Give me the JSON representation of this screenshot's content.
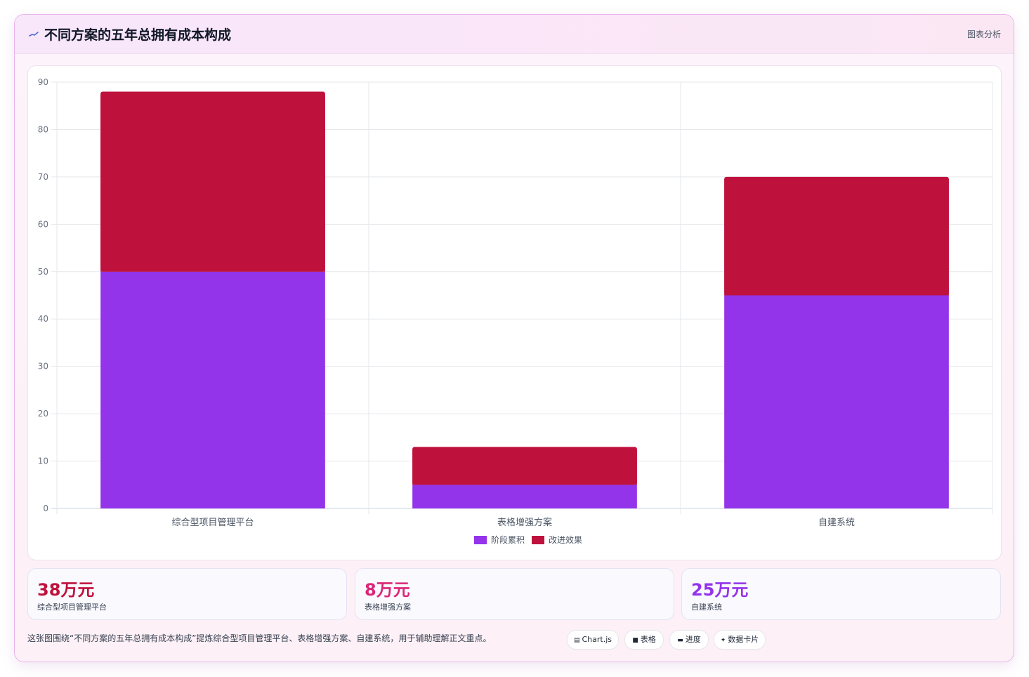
{
  "header": {
    "title": "不同方案的五年总拥有成本构成",
    "tag": "图表分析",
    "icon": "sparkline-icon"
  },
  "colors": {
    "series_purple": "#9333ea",
    "series_crimson": "#be123c",
    "stat_crimson": "#be123c",
    "stat_pink": "#db2777",
    "stat_purple": "#9333ea"
  },
  "chart_data": {
    "type": "bar",
    "stacked": true,
    "categories": [
      "综合型项目管理平台",
      "表格增强方案",
      "自建系统"
    ],
    "series": [
      {
        "name": "阶段累积",
        "color": "#9333ea",
        "values": [
          50,
          5,
          45
        ]
      },
      {
        "name": "改进效果",
        "color": "#be123c",
        "values": [
          38,
          8,
          25
        ]
      }
    ],
    "ylim": [
      0,
      90
    ],
    "yticks": [
      0,
      10,
      20,
      30,
      40,
      50,
      60,
      70,
      80,
      90
    ],
    "grid": true,
    "legend": "bottom-center"
  },
  "stats": [
    {
      "value": "38万元",
      "label": "综合型项目管理平台",
      "color": "#be123c"
    },
    {
      "value": "8万元",
      "label": "表格增强方案",
      "color": "#db2777"
    },
    {
      "value": "25万元",
      "label": "自建系统",
      "color": "#9333ea"
    }
  ],
  "caption": "这张图围绕“不同方案的五年总拥有成本构成”提炼综合型项目管理平台、表格增强方案、自建系统，用于辅助理解正文重点。",
  "chips": [
    {
      "glyph": "▤",
      "label": "Chart.js",
      "icon": "chart-icon"
    },
    {
      "glyph": "■",
      "label": "表格",
      "icon": "table-icon"
    },
    {
      "glyph": "▬",
      "label": "进度",
      "icon": "progress-icon"
    },
    {
      "glyph": "✦",
      "label": "数据卡片",
      "icon": "sparkle-icon"
    }
  ]
}
